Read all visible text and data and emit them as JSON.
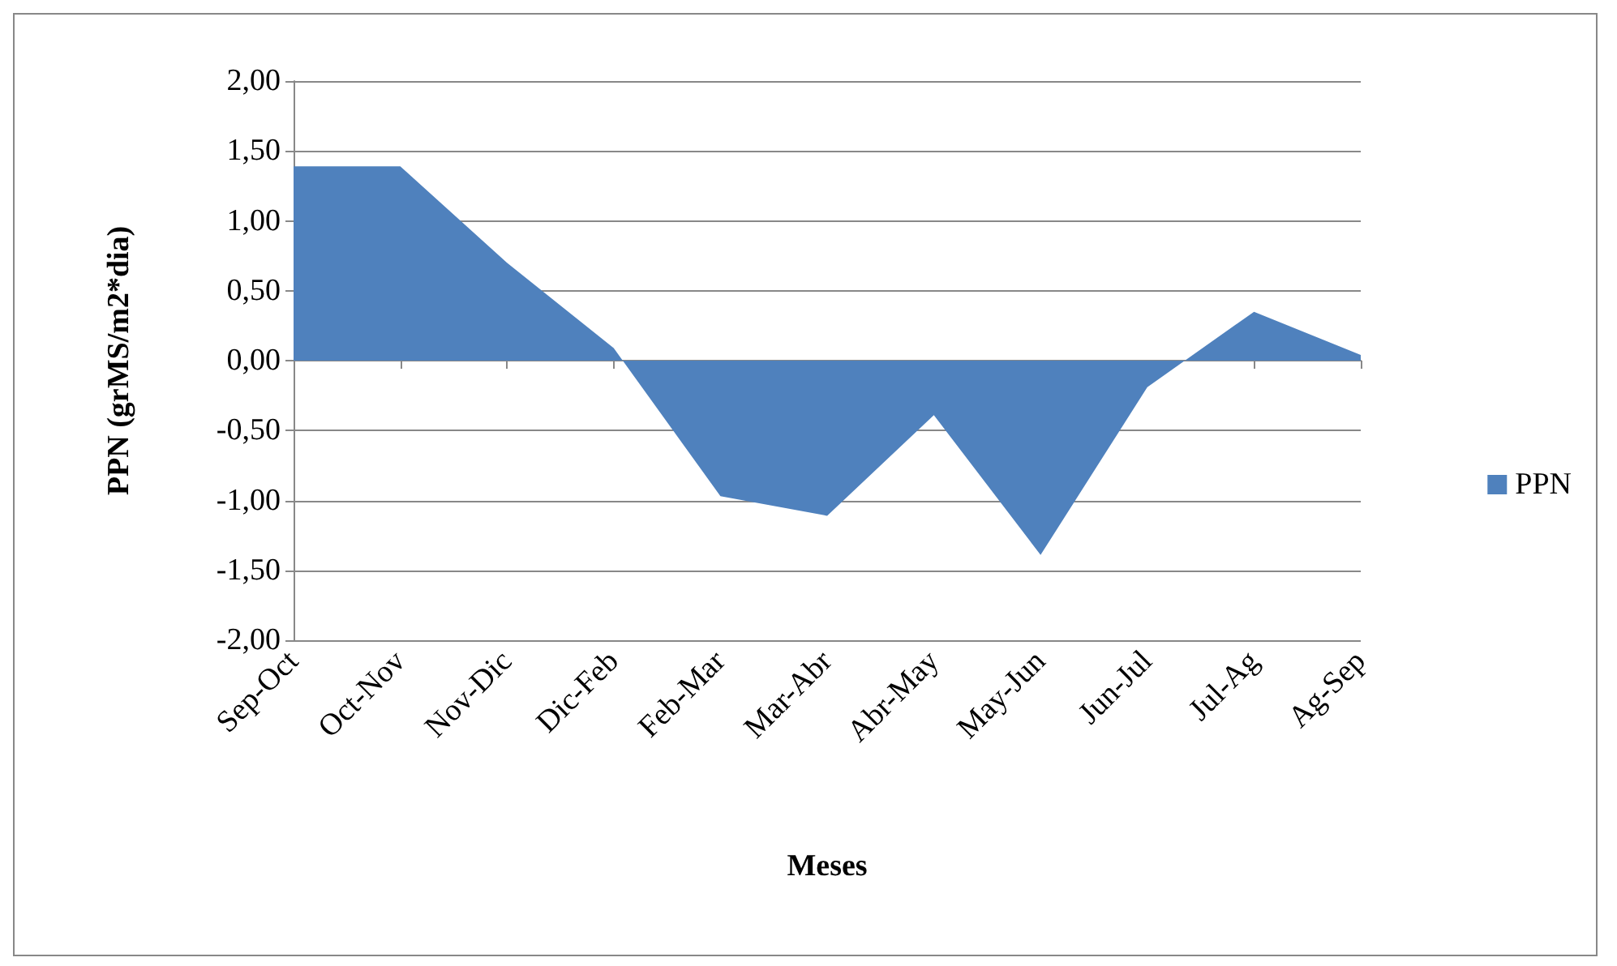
{
  "chart_data": {
    "type": "area",
    "xlabel": "Meses",
    "ylabel": "PPN (grMS/m2*dia)",
    "categories": [
      "Sep-Oct",
      "Oct-Nov",
      "Nov-Dic",
      "Dic-Feb",
      "Feb-Mar",
      "Mar-Abr",
      "Abr-May",
      "May-Jun",
      "Jun-Jul",
      "Jul-Ag",
      "Ag-Sep"
    ],
    "series": [
      {
        "name": "PPN",
        "color": "#4f81bd",
        "values": [
          1.39,
          1.39,
          0.7,
          0.09,
          -0.97,
          -1.11,
          -0.39,
          -1.39,
          -0.19,
          0.35,
          0.04
        ]
      }
    ],
    "ylim": [
      -2,
      2
    ],
    "yticks": [
      {
        "value": -2,
        "label": "-2,00"
      },
      {
        "value": -1.5,
        "label": "-1,50"
      },
      {
        "value": -1,
        "label": "-1,00"
      },
      {
        "value": -0.5,
        "label": "-0,50"
      },
      {
        "value": 0,
        "label": "0,00"
      },
      {
        "value": 0.5,
        "label": "0,50"
      },
      {
        "value": 1,
        "label": "1,00"
      },
      {
        "value": 1.5,
        "label": "1,50"
      },
      {
        "value": 2,
        "label": "2,00"
      }
    ],
    "grid": "y",
    "legend": "right"
  }
}
